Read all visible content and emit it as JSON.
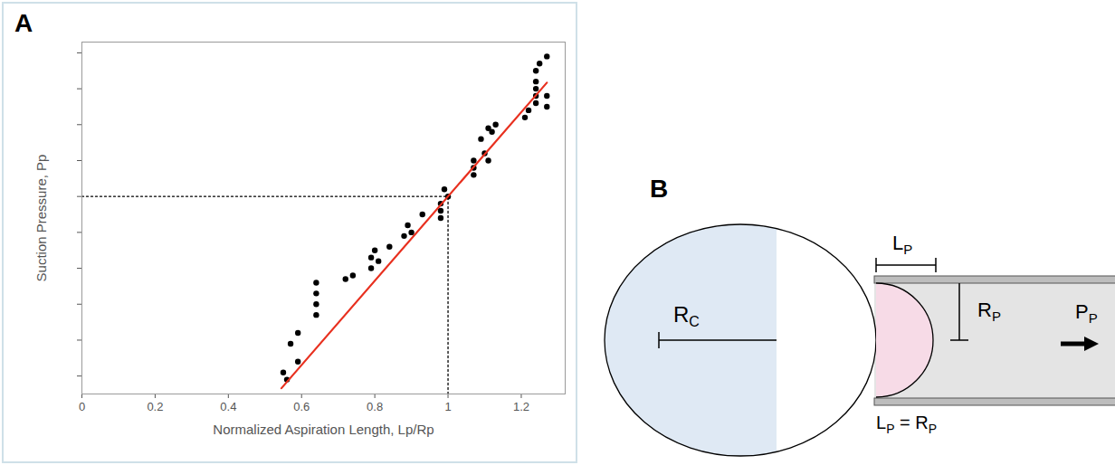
{
  "chart_data": {
    "type": "scatter",
    "marker": "circle",
    "color": "#000000",
    "x_label": "Normalized Aspiration Length, Lp/Rp",
    "y_label": "Suction Pressure, Pp",
    "x": [
      0.55,
      0.56,
      0.57,
      0.59,
      0.59,
      0.64,
      0.64,
      0.64,
      0.64,
      0.72,
      0.74,
      0.79,
      0.79,
      0.8,
      0.81,
      0.84,
      0.88,
      0.89,
      0.9,
      0.93,
      0.98,
      0.98,
      0.98,
      0.99,
      1.0,
      1.07,
      1.07,
      1.07,
      1.09,
      1.1,
      1.11,
      1.11,
      1.12,
      1.13,
      1.21,
      1.22,
      1.24,
      1.24,
      1.24,
      1.24,
      1.24,
      1.25,
      1.27,
      1.27,
      1.27
    ],
    "values": [
      0.1,
      -0.1,
      0.9,
      0.4,
      1.2,
      1.7,
      2.0,
      2.3,
      2.6,
      2.7,
      2.8,
      3.0,
      3.3,
      3.5,
      3.2,
      3.6,
      3.9,
      4.2,
      4.0,
      4.5,
      4.4,
      4.6,
      4.8,
      5.2,
      5.0,
      5.6,
      5.8,
      6.0,
      6.6,
      6.2,
      6.9,
      6.0,
      6.8,
      7.0,
      7.2,
      7.4,
      7.6,
      7.8,
      8.0,
      8.2,
      8.5,
      8.7,
      8.9,
      7.8,
      7.5
    ],
    "fit_line": {
      "x": [
        0.545,
        1.27
      ],
      "values": [
        -0.34,
        8.17
      ],
      "color": "#e8301f"
    },
    "reference": {
      "x": 1,
      "y": 5,
      "line_style": "dotted"
    },
    "xlim": [
      0,
      1.32
    ],
    "xticks": [
      0,
      0.2,
      0.4,
      0.6,
      0.8,
      1,
      1.2
    ],
    "ylim": [
      -0.5,
      9.3
    ],
    "yticks": [
      0,
      1,
      2,
      3,
      4,
      5,
      6,
      7,
      8,
      9
    ],
    "tick_labels": "x",
    "grid": false
  },
  "panel_letters": [
    "A",
    "B"
  ],
  "diagram": {
    "rc": {
      "main": "R",
      "sub": "C"
    },
    "lp": {
      "main": "L",
      "sub": "P"
    },
    "rp": {
      "main": "R",
      "sub": "P"
    },
    "pp": {
      "main": "P",
      "sub": "P"
    },
    "equation": {
      "left": {
        "main": "L",
        "sub": "P"
      },
      "sign": "=",
      "right": {
        "main": "R",
        "sub": "P"
      }
    }
  }
}
